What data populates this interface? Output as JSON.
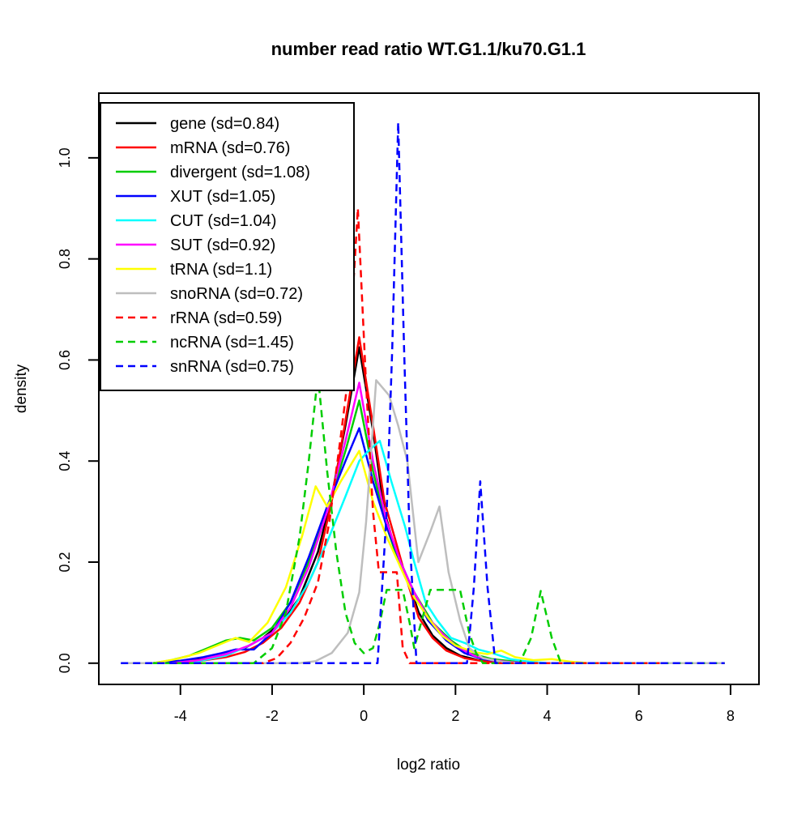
{
  "figure": {
    "background": "#ffffff",
    "frame_color": "#000000"
  },
  "chart_data": {
    "type": "line",
    "title": "number read ratio WT.G1.1/ku70.G1.1",
    "xlabel": "log2 ratio",
    "ylabel": "density",
    "xlim": [
      -5.78,
      8.62
    ],
    "ylim": [
      -0.042,
      1.128
    ],
    "grid": false,
    "legend_position": "top-left",
    "xticks": [
      {
        "v": -4,
        "label": "-4"
      },
      {
        "v": -2,
        "label": "-2"
      },
      {
        "v": 0,
        "label": "0"
      },
      {
        "v": 2,
        "label": "2"
      },
      {
        "v": 4,
        "label": "4"
      },
      {
        "v": 6,
        "label": "6"
      },
      {
        "v": 8,
        "label": "8"
      }
    ],
    "yticks": [
      {
        "v": 0.0,
        "label": "0.0"
      },
      {
        "v": 0.2,
        "label": "0.2"
      },
      {
        "v": 0.4,
        "label": "0.4"
      },
      {
        "v": 0.6,
        "label": "0.6"
      },
      {
        "v": 0.8,
        "label": "0.8"
      },
      {
        "v": 1.0,
        "label": "1.0"
      }
    ],
    "series": [
      {
        "name": "gene",
        "label": "gene (sd=0.84)",
        "sd": 0.84,
        "color": "#000000",
        "dash": "solid",
        "points": [
          [
            -4.6,
            0
          ],
          [
            -4.2,
            0.002
          ],
          [
            -3.8,
            0.005
          ],
          [
            -3.4,
            0.01
          ],
          [
            -3.0,
            0.018
          ],
          [
            -2.6,
            0.03
          ],
          [
            -2.2,
            0.05
          ],
          [
            -1.8,
            0.08
          ],
          [
            -1.4,
            0.13
          ],
          [
            -1.0,
            0.22
          ],
          [
            -0.7,
            0.33
          ],
          [
            -0.4,
            0.47
          ],
          [
            -0.1,
            0.625
          ],
          [
            0.2,
            0.46
          ],
          [
            0.45,
            0.3
          ],
          [
            0.7,
            0.22
          ],
          [
            0.9,
            0.18
          ],
          [
            1.2,
            0.1
          ],
          [
            1.5,
            0.055
          ],
          [
            1.8,
            0.03
          ],
          [
            2.1,
            0.015
          ],
          [
            2.5,
            0.006
          ],
          [
            3.0,
            0.002
          ],
          [
            3.4,
            0
          ],
          [
            7.87,
            0
          ]
        ]
      },
      {
        "name": "mRNA",
        "label": "mRNA (sd=0.76)",
        "sd": 0.76,
        "color": "#FF0000",
        "dash": "solid",
        "points": [
          [
            -4.2,
            0
          ],
          [
            -3.6,
            0.004
          ],
          [
            -3.0,
            0.012
          ],
          [
            -2.6,
            0.022
          ],
          [
            -2.2,
            0.04
          ],
          [
            -1.8,
            0.07
          ],
          [
            -1.4,
            0.12
          ],
          [
            -1.0,
            0.2
          ],
          [
            -0.7,
            0.32
          ],
          [
            -0.4,
            0.48
          ],
          [
            -0.1,
            0.645
          ],
          [
            0.2,
            0.47
          ],
          [
            0.45,
            0.32
          ],
          [
            0.7,
            0.24
          ],
          [
            0.9,
            0.175
          ],
          [
            1.2,
            0.09
          ],
          [
            1.5,
            0.05
          ],
          [
            1.8,
            0.025
          ],
          [
            2.2,
            0.01
          ],
          [
            2.6,
            0.004
          ],
          [
            3.0,
            0
          ],
          [
            7.87,
            0
          ]
        ]
      },
      {
        "name": "divergent",
        "label": "divergent (sd=1.08)",
        "sd": 1.08,
        "color": "#00CD00",
        "dash": "solid",
        "points": [
          [
            -4.6,
            0
          ],
          [
            -4.2,
            0.006
          ],
          [
            -3.8,
            0.015
          ],
          [
            -3.4,
            0.03
          ],
          [
            -3.0,
            0.045
          ],
          [
            -2.7,
            0.05
          ],
          [
            -2.4,
            0.045
          ],
          [
            -2.0,
            0.07
          ],
          [
            -1.6,
            0.12
          ],
          [
            -1.2,
            0.2
          ],
          [
            -0.8,
            0.3
          ],
          [
            -0.4,
            0.42
          ],
          [
            -0.1,
            0.52
          ],
          [
            0.2,
            0.38
          ],
          [
            0.5,
            0.27
          ],
          [
            0.8,
            0.19
          ],
          [
            1.1,
            0.14
          ],
          [
            1.5,
            0.08
          ],
          [
            1.9,
            0.045
          ],
          [
            2.3,
            0.02
          ],
          [
            2.8,
            0.008
          ],
          [
            3.3,
            0.003
          ],
          [
            3.8,
            0
          ],
          [
            7.87,
            0
          ]
        ]
      },
      {
        "name": "XUT",
        "label": "XUT (sd=1.05)",
        "sd": 1.05,
        "color": "#0000FF",
        "dash": "solid",
        "points": [
          [
            -4.6,
            0
          ],
          [
            -4.0,
            0.005
          ],
          [
            -3.5,
            0.012
          ],
          [
            -3.1,
            0.02
          ],
          [
            -2.8,
            0.027
          ],
          [
            -2.4,
            0.027
          ],
          [
            -2.0,
            0.06
          ],
          [
            -1.6,
            0.12
          ],
          [
            -1.2,
            0.21
          ],
          [
            -0.8,
            0.31
          ],
          [
            -0.4,
            0.4
          ],
          [
            -0.1,
            0.465
          ],
          [
            0.2,
            0.36
          ],
          [
            0.5,
            0.27
          ],
          [
            0.8,
            0.2
          ],
          [
            1.1,
            0.14
          ],
          [
            1.4,
            0.085
          ],
          [
            1.8,
            0.045
          ],
          [
            2.2,
            0.02
          ],
          [
            2.6,
            0.008
          ],
          [
            3.0,
            0.003
          ],
          [
            3.5,
            0
          ],
          [
            7.87,
            0
          ]
        ]
      },
      {
        "name": "CUT",
        "label": "CUT (sd=1.04)",
        "sd": 1.04,
        "color": "#00FFFF",
        "dash": "solid",
        "points": [
          [
            -4.2,
            0
          ],
          [
            -3.6,
            0.004
          ],
          [
            -3.0,
            0.015
          ],
          [
            -2.5,
            0.035
          ],
          [
            -2.0,
            0.06
          ],
          [
            -1.6,
            0.1
          ],
          [
            -1.2,
            0.16
          ],
          [
            -0.8,
            0.24
          ],
          [
            -0.4,
            0.33
          ],
          [
            -0.1,
            0.4
          ],
          [
            0.1,
            0.42
          ],
          [
            0.35,
            0.44
          ],
          [
            0.6,
            0.36
          ],
          [
            0.9,
            0.27
          ],
          [
            1.1,
            0.2
          ],
          [
            1.35,
            0.12
          ],
          [
            1.6,
            0.085
          ],
          [
            1.9,
            0.05
          ],
          [
            2.2,
            0.04
          ],
          [
            2.5,
            0.027
          ],
          [
            2.8,
            0.02
          ],
          [
            3.2,
            0.008
          ],
          [
            3.6,
            0.003
          ],
          [
            4.0,
            0
          ],
          [
            7.87,
            0
          ]
        ]
      },
      {
        "name": "SUT",
        "label": "SUT (sd=0.92)",
        "sd": 0.92,
        "color": "#FF00FF",
        "dash": "solid",
        "points": [
          [
            -4.2,
            0
          ],
          [
            -3.6,
            0.006
          ],
          [
            -3.0,
            0.018
          ],
          [
            -2.5,
            0.035
          ],
          [
            -2.0,
            0.06
          ],
          [
            -1.6,
            0.11
          ],
          [
            -1.2,
            0.19
          ],
          [
            -0.8,
            0.3
          ],
          [
            -0.4,
            0.44
          ],
          [
            -0.1,
            0.555
          ],
          [
            0.2,
            0.4
          ],
          [
            0.5,
            0.28
          ],
          [
            0.8,
            0.2
          ],
          [
            1.1,
            0.14
          ],
          [
            1.4,
            0.09
          ],
          [
            1.7,
            0.06
          ],
          [
            2.0,
            0.035
          ],
          [
            2.4,
            0.015
          ],
          [
            2.8,
            0.006
          ],
          [
            3.2,
            0.002
          ],
          [
            3.6,
            0
          ],
          [
            7.87,
            0
          ]
        ]
      },
      {
        "name": "tRNA",
        "label": "tRNA (sd=1.1)",
        "sd": 1.1,
        "color": "#FFFF00",
        "dash": "solid",
        "points": [
          [
            -4.6,
            0
          ],
          [
            -4.1,
            0.008
          ],
          [
            -3.6,
            0.02
          ],
          [
            -3.2,
            0.035
          ],
          [
            -2.8,
            0.05
          ],
          [
            -2.5,
            0.042
          ],
          [
            -2.1,
            0.08
          ],
          [
            -1.7,
            0.15
          ],
          [
            -1.35,
            0.25
          ],
          [
            -1.05,
            0.35
          ],
          [
            -0.8,
            0.31
          ],
          [
            -0.5,
            0.36
          ],
          [
            -0.1,
            0.42
          ],
          [
            0.2,
            0.32
          ],
          [
            0.5,
            0.25
          ],
          [
            0.8,
            0.19
          ],
          [
            1.1,
            0.13
          ],
          [
            1.4,
            0.09
          ],
          [
            1.7,
            0.055
          ],
          [
            2.0,
            0.035
          ],
          [
            2.4,
            0.022
          ],
          [
            2.7,
            0.018
          ],
          [
            3.0,
            0.025
          ],
          [
            3.3,
            0.012
          ],
          [
            3.7,
            0.006
          ],
          [
            4.1,
            0.008
          ],
          [
            4.5,
            0.003
          ],
          [
            4.9,
            0
          ],
          [
            7.87,
            0
          ]
        ]
      },
      {
        "name": "snoRNA",
        "label": "snoRNA (sd=0.72)",
        "sd": 0.72,
        "color": "#BEBEBE",
        "dash": "solid",
        "points": [
          [
            -5.3,
            0
          ],
          [
            -1.4,
            0
          ],
          [
            -1.05,
            0.004
          ],
          [
            -0.7,
            0.02
          ],
          [
            -0.35,
            0.06
          ],
          [
            -0.1,
            0.14
          ],
          [
            0.05,
            0.28
          ],
          [
            0.27,
            0.56
          ],
          [
            0.55,
            0.53
          ],
          [
            0.75,
            0.47
          ],
          [
            0.95,
            0.4
          ],
          [
            1.19,
            0.2
          ],
          [
            1.45,
            0.26
          ],
          [
            1.65,
            0.31
          ],
          [
            1.85,
            0.18
          ],
          [
            2.1,
            0.085
          ],
          [
            2.3,
            0.03
          ],
          [
            2.6,
            0.01
          ],
          [
            3.0,
            0.003
          ],
          [
            3.4,
            0
          ],
          [
            7.87,
            0
          ]
        ]
      },
      {
        "name": "rRNA",
        "label": "rRNA (sd=0.59)",
        "sd": 0.59,
        "color": "#FF0000",
        "dash": "dashed",
        "points": [
          [
            -4.2,
            0
          ],
          [
            -2.2,
            0
          ],
          [
            -1.9,
            0.01
          ],
          [
            -1.6,
            0.04
          ],
          [
            -1.3,
            0.09
          ],
          [
            -1.0,
            0.16
          ],
          [
            -0.75,
            0.28
          ],
          [
            -0.5,
            0.45
          ],
          [
            -0.35,
            0.56
          ],
          [
            -0.13,
            0.9
          ],
          [
            0.05,
            0.55
          ],
          [
            0.2,
            0.3
          ],
          [
            0.33,
            0.18
          ],
          [
            0.72,
            0.18
          ],
          [
            0.85,
            0.03
          ],
          [
            1.0,
            0
          ],
          [
            6.5,
            0
          ]
        ]
      },
      {
        "name": "ncRNA",
        "label": "ncRNA (sd=1.45)",
        "sd": 1.45,
        "color": "#00CD00",
        "dash": "dashed",
        "points": [
          [
            -4.6,
            0
          ],
          [
            -2.4,
            0
          ],
          [
            -2.0,
            0.03
          ],
          [
            -1.7,
            0.1
          ],
          [
            -1.4,
            0.25
          ],
          [
            -1.2,
            0.4
          ],
          [
            -1.0,
            0.57
          ],
          [
            -0.8,
            0.38
          ],
          [
            -0.6,
            0.22
          ],
          [
            -0.4,
            0.1
          ],
          [
            -0.2,
            0.04
          ],
          [
            0.0,
            0.02
          ],
          [
            0.2,
            0.03
          ],
          [
            0.35,
            0.08
          ],
          [
            0.5,
            0.145
          ],
          [
            0.85,
            0.145
          ],
          [
            1.0,
            0.08
          ],
          [
            1.1,
            0.03
          ],
          [
            1.25,
            0.08
          ],
          [
            1.45,
            0.145
          ],
          [
            2.1,
            0.145
          ],
          [
            2.3,
            0.06
          ],
          [
            2.45,
            0.02
          ],
          [
            2.6,
            0
          ],
          [
            3.4,
            0
          ],
          [
            3.65,
            0.05
          ],
          [
            3.86,
            0.143
          ],
          [
            4.1,
            0.05
          ],
          [
            4.3,
            0
          ],
          [
            7.87,
            0
          ]
        ]
      },
      {
        "name": "snRNA",
        "label": "snRNA (sd=0.75)",
        "sd": 0.75,
        "color": "#0000FF",
        "dash": "dashed",
        "points": [
          [
            -5.3,
            0
          ],
          [
            0.3,
            0
          ],
          [
            0.5,
            0.3
          ],
          [
            0.62,
            0.62
          ],
          [
            0.75,
            1.07
          ],
          [
            0.88,
            0.62
          ],
          [
            1.0,
            0.25
          ],
          [
            1.15,
            0
          ],
          [
            2.25,
            0
          ],
          [
            2.4,
            0.15
          ],
          [
            2.54,
            0.36
          ],
          [
            2.7,
            0.15
          ],
          [
            2.87,
            0
          ],
          [
            7.87,
            0
          ]
        ]
      }
    ]
  }
}
